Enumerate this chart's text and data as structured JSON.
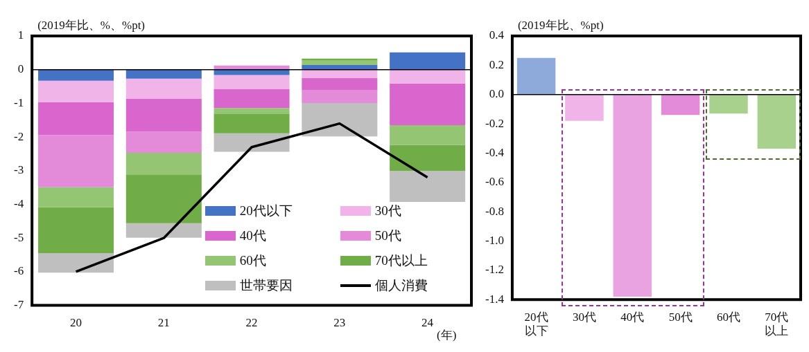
{
  "chart_data": [
    {
      "type": "bar",
      "stacked": true,
      "ylabel": "(2019年比、%、%pt)",
      "xlabel": "(年)",
      "categories": [
        "20",
        "21",
        "22",
        "23",
        "24"
      ],
      "ylim": [
        -7,
        1
      ],
      "yticks": [
        1,
        0,
        -1,
        -2,
        -3,
        -4,
        -5,
        -6,
        -7
      ],
      "legend": "bottom right",
      "marker": "none",
      "ref_lines": [
        {
          "axis": "y",
          "value": 0,
          "color": "#000000"
        }
      ],
      "series": [
        {
          "name": "20代以下",
          "color": "#4472c4",
          "values": [
            -0.33,
            -0.27,
            -0.16,
            0.14,
            0.51
          ]
        },
        {
          "name": "30代",
          "color": "#f0b4e8",
          "values": [
            -0.64,
            -0.6,
            -0.41,
            -0.25,
            -0.41
          ]
        },
        {
          "name": "40代",
          "color": "#d966cc",
          "values": [
            -0.97,
            -0.97,
            -0.57,
            -0.35,
            -1.24
          ]
        },
        {
          "name": "50代",
          "color": "#e38ad8",
          "values": [
            -1.55,
            -0.63,
            0.12,
            -0.39,
            0
          ]
        },
        {
          "name": "60代",
          "color": "#93c572",
          "values": [
            -0.59,
            -0.64,
            -0.18,
            0.14,
            -0.59
          ]
        },
        {
          "name": "70代以上",
          "color": "#70ad47",
          "values": [
            -1.37,
            -1.45,
            -0.57,
            0.05,
            -0.77
          ]
        },
        {
          "name": "世帯要因",
          "color": "#bfbfbf",
          "values": [
            -0.58,
            -0.43,
            -0.55,
            -0.99,
            -0.92
          ]
        },
        {
          "name": "個人消費",
          "type": "line",
          "color": "#000000",
          "values": [
            -6.0,
            -5.0,
            -2.3,
            -1.6,
            -3.2
          ]
        }
      ]
    },
    {
      "type": "bar",
      "ylabel": "(2019年比、%pt)",
      "categories": [
        "20代以下",
        "30代",
        "40代",
        "50代",
        "60代",
        "70代以上"
      ],
      "values": [
        0.25,
        -0.18,
        -1.38,
        -0.14,
        -0.13,
        -0.37
      ],
      "colors": [
        "#8eaadb",
        "#f0b4e8",
        "#e8a3e0",
        "#e38ad8",
        "#a9d18e",
        "#a9d18e"
      ],
      "ylim": [
        -1.4,
        0.4
      ],
      "yticks": [
        0.4,
        0.2,
        {
          "value": 0,
          "label": "0.0"
        },
        -0.2,
        -0.4,
        -0.6,
        -0.8,
        {
          "value": -1,
          "label": "-1.0"
        },
        -1.2,
        -1.4
      ],
      "ref_lines": [
        {
          "axis": "y",
          "value": 0,
          "color": "#000000"
        }
      ]
    }
  ]
}
